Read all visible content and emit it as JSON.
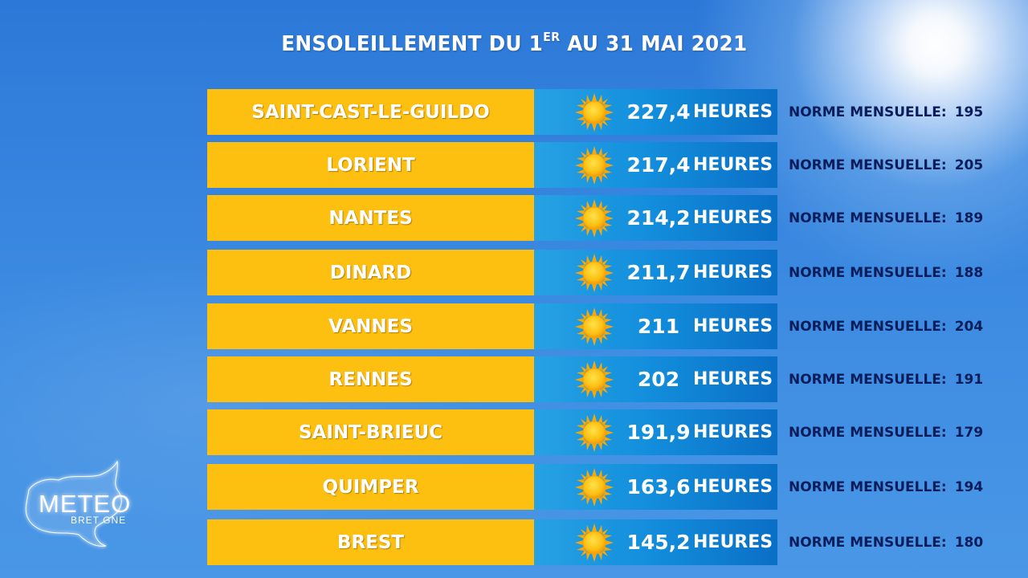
{
  "title": {
    "part1": "ENSOLEILLEMENT DU 1",
    "sup": "ER",
    "part2": " AU 31 MAI 2021"
  },
  "norm_label": "NORME MENSUELLE:",
  "unit_label": "HEURES",
  "icons": {
    "sun": "sun-icon",
    "logo": "meteo-bretagne-logo"
  },
  "colors": {
    "city_bar": "#fdbf10",
    "value_bar": "#138fdd",
    "norm_text": "#0a1d5a"
  },
  "rows": [
    {
      "city": "SAINT-CAST-LE-GUILDO",
      "value": "227,4",
      "norm": "195"
    },
    {
      "city": "LORIENT",
      "value": "217,4",
      "norm": "205"
    },
    {
      "city": "NANTES",
      "value": "214,2",
      "norm": "189"
    },
    {
      "city": "DINARD",
      "value": "211,7",
      "norm": "188"
    },
    {
      "city": "VANNES",
      "value": "211",
      "norm": "204"
    },
    {
      "city": "RENNES",
      "value": "202",
      "norm": "191"
    },
    {
      "city": "SAINT-BRIEUC",
      "value": "191,9",
      "norm": "179"
    },
    {
      "city": "QUIMPER",
      "value": "163,6",
      "norm": "194"
    },
    {
      "city": "BREST",
      "value": "145,2",
      "norm": "180"
    }
  ],
  "logo": {
    "main": "METEO",
    "sub": "BRET GNE"
  }
}
